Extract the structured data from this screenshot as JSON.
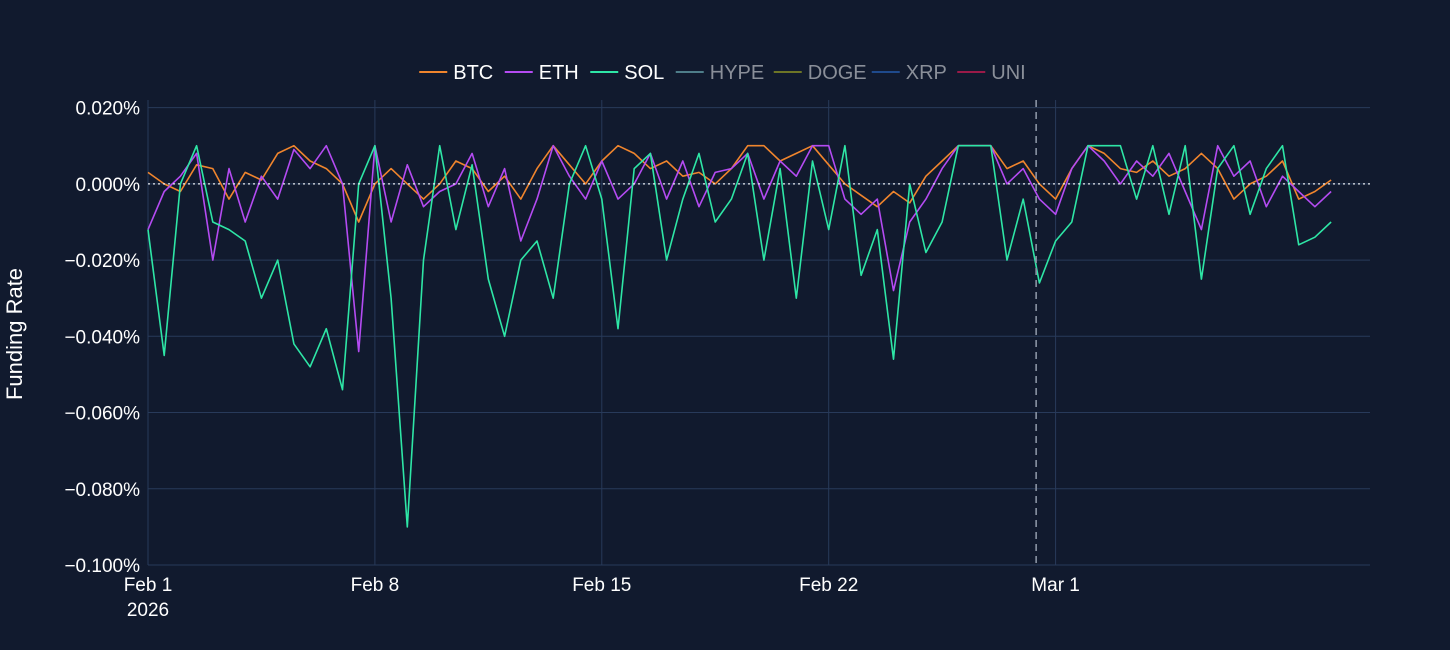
{
  "colors": {
    "background": "#111a2e",
    "grid": "#283a5a",
    "zero_line": "#e8ecf2",
    "marker_line": "#8a93a3",
    "legend_active_text": "#ffffff",
    "legend_inactive_text": "#8a8f99"
  },
  "chart_data": {
    "type": "line",
    "title": "",
    "xlabel": "",
    "ylabel": "Funding Rate",
    "ylim": [
      -0.1,
      0.022
    ],
    "y_unit": "%",
    "y_ticks": [
      0.02,
      0.0,
      -0.02,
      -0.04,
      -0.06,
      -0.08,
      -0.1
    ],
    "y_tick_labels": [
      "0.020%",
      "0.000%",
      "−0.020%",
      "−0.040%",
      "−0.060%",
      "−0.080%",
      "−0.100%"
    ],
    "x_range_days": [
      0,
      37.7
    ],
    "x_ticks": [
      0,
      7,
      14,
      21,
      28
    ],
    "x_tick_labels": [
      "Feb 1",
      "Feb 8",
      "Feb 15",
      "Feb 22",
      "Mar 1"
    ],
    "x_tick_year": "2026",
    "marker_day": 27.4,
    "zero_reference": 0.0,
    "grid": true,
    "legend_placement": "top-center",
    "x_units": "days since Feb 1 2026",
    "series": [
      {
        "name": "BTC",
        "color": "#f0852d",
        "visible": true,
        "points": [
          [
            0,
            0.003
          ],
          [
            0.5,
            0.0
          ],
          [
            1,
            -0.002
          ],
          [
            1.5,
            0.005
          ],
          [
            2,
            0.004
          ],
          [
            2.5,
            -0.004
          ],
          [
            3,
            0.003
          ],
          [
            3.5,
            0.001
          ],
          [
            4,
            0.008
          ],
          [
            4.5,
            0.01
          ],
          [
            5,
            0.006
          ],
          [
            5.5,
            0.004
          ],
          [
            6,
            0.0
          ],
          [
            6.5,
            -0.01
          ],
          [
            7,
            0.0
          ],
          [
            7.5,
            0.004
          ],
          [
            8,
            0.0
          ],
          [
            8.5,
            -0.004
          ],
          [
            9,
            0.0
          ],
          [
            9.5,
            0.006
          ],
          [
            10,
            0.004
          ],
          [
            10.5,
            -0.002
          ],
          [
            11,
            0.002
          ],
          [
            11.5,
            -0.004
          ],
          [
            12,
            0.004
          ],
          [
            12.5,
            0.01
          ],
          [
            13,
            0.005
          ],
          [
            13.5,
            0.0
          ],
          [
            14,
            0.006
          ],
          [
            14.5,
            0.01
          ],
          [
            15,
            0.008
          ],
          [
            15.5,
            0.004
          ],
          [
            16,
            0.006
          ],
          [
            16.5,
            0.002
          ],
          [
            17,
            0.003
          ],
          [
            17.5,
            0.0
          ],
          [
            18,
            0.004
          ],
          [
            18.5,
            0.01
          ],
          [
            19,
            0.01
          ],
          [
            19.5,
            0.006
          ],
          [
            20,
            0.008
          ],
          [
            20.5,
            0.01
          ],
          [
            21,
            0.005
          ],
          [
            21.5,
            0.0
          ],
          [
            22,
            -0.003
          ],
          [
            22.5,
            -0.006
          ],
          [
            23,
            -0.002
          ],
          [
            23.5,
            -0.005
          ],
          [
            24,
            0.002
          ],
          [
            24.5,
            0.006
          ],
          [
            25,
            0.01
          ],
          [
            25.5,
            0.01
          ],
          [
            26,
            0.01
          ],
          [
            26.5,
            0.004
          ],
          [
            27,
            0.006
          ],
          [
            27.5,
            0.0
          ],
          [
            28,
            -0.004
          ],
          [
            28.5,
            0.004
          ],
          [
            29,
            0.01
          ],
          [
            29.5,
            0.008
          ],
          [
            30,
            0.004
          ],
          [
            30.5,
            0.003
          ],
          [
            31,
            0.006
          ],
          [
            31.5,
            0.002
          ],
          [
            32,
            0.004
          ],
          [
            32.5,
            0.008
          ],
          [
            33,
            0.004
          ],
          [
            33.5,
            -0.004
          ],
          [
            34,
            0.0
          ],
          [
            34.5,
            0.002
          ],
          [
            35,
            0.006
          ],
          [
            35.5,
            -0.004
          ],
          [
            36,
            -0.002
          ],
          [
            36.5,
            0.001
          ]
        ]
      },
      {
        "name": "ETH",
        "color": "#b44bf2",
        "visible": true,
        "points": [
          [
            0,
            -0.012
          ],
          [
            0.5,
            -0.002
          ],
          [
            1,
            0.002
          ],
          [
            1.5,
            0.008
          ],
          [
            2,
            -0.02
          ],
          [
            2.5,
            0.004
          ],
          [
            3,
            -0.01
          ],
          [
            3.5,
            0.002
          ],
          [
            4,
            -0.004
          ],
          [
            4.5,
            0.009
          ],
          [
            5,
            0.004
          ],
          [
            5.5,
            0.01
          ],
          [
            6,
            0.0
          ],
          [
            6.5,
            -0.044
          ],
          [
            7,
            0.01
          ],
          [
            7.5,
            -0.01
          ],
          [
            8,
            0.005
          ],
          [
            8.5,
            -0.006
          ],
          [
            9,
            -0.002
          ],
          [
            9.5,
            0.0
          ],
          [
            10,
            0.008
          ],
          [
            10.5,
            -0.006
          ],
          [
            11,
            0.004
          ],
          [
            11.5,
            -0.015
          ],
          [
            12,
            -0.004
          ],
          [
            12.5,
            0.01
          ],
          [
            13,
            0.002
          ],
          [
            13.5,
            -0.004
          ],
          [
            14,
            0.006
          ],
          [
            14.5,
            -0.004
          ],
          [
            15,
            0.0
          ],
          [
            15.5,
            0.008
          ],
          [
            16,
            -0.004
          ],
          [
            16.5,
            0.006
          ],
          [
            17,
            -0.006
          ],
          [
            17.5,
            0.003
          ],
          [
            18,
            0.004
          ],
          [
            18.5,
            0.008
          ],
          [
            19,
            -0.004
          ],
          [
            19.5,
            0.006
          ],
          [
            20,
            0.002
          ],
          [
            20.5,
            0.01
          ],
          [
            21,
            0.01
          ],
          [
            21.5,
            -0.004
          ],
          [
            22,
            -0.008
          ],
          [
            22.5,
            -0.004
          ],
          [
            23,
            -0.028
          ],
          [
            23.5,
            -0.01
          ],
          [
            24,
            -0.004
          ],
          [
            24.5,
            0.004
          ],
          [
            25,
            0.01
          ],
          [
            25.5,
            0.01
          ],
          [
            26,
            0.01
          ],
          [
            26.5,
            0.0
          ],
          [
            27,
            0.004
          ],
          [
            27.5,
            -0.004
          ],
          [
            28,
            -0.008
          ],
          [
            28.5,
            0.004
          ],
          [
            29,
            0.01
          ],
          [
            29.5,
            0.006
          ],
          [
            30,
            0.0
          ],
          [
            30.5,
            0.006
          ],
          [
            31,
            0.002
          ],
          [
            31.5,
            0.008
          ],
          [
            32,
            -0.002
          ],
          [
            32.5,
            -0.012
          ],
          [
            33,
            0.01
          ],
          [
            33.5,
            0.002
          ],
          [
            34,
            0.006
          ],
          [
            34.5,
            -0.006
          ],
          [
            35,
            0.002
          ],
          [
            35.5,
            -0.002
          ],
          [
            36,
            -0.006
          ],
          [
            36.5,
            -0.002
          ]
        ]
      },
      {
        "name": "SOL",
        "color": "#2ee6a6",
        "visible": true,
        "points": [
          [
            0,
            -0.012
          ],
          [
            0.5,
            -0.045
          ],
          [
            1,
            0.0
          ],
          [
            1.5,
            0.01
          ],
          [
            2,
            -0.01
          ],
          [
            2.5,
            -0.012
          ],
          [
            3,
            -0.015
          ],
          [
            3.5,
            -0.03
          ],
          [
            4,
            -0.02
          ],
          [
            4.5,
            -0.042
          ],
          [
            5,
            -0.048
          ],
          [
            5.5,
            -0.038
          ],
          [
            6,
            -0.054
          ],
          [
            6.5,
            0.0
          ],
          [
            7,
            0.01
          ],
          [
            7.5,
            -0.03
          ],
          [
            8,
            -0.09
          ],
          [
            8.5,
            -0.02
          ],
          [
            9,
            0.01
          ],
          [
            9.5,
            -0.012
          ],
          [
            10,
            0.005
          ],
          [
            10.5,
            -0.025
          ],
          [
            11,
            -0.04
          ],
          [
            11.5,
            -0.02
          ],
          [
            12,
            -0.015
          ],
          [
            12.5,
            -0.03
          ],
          [
            13,
            0.0
          ],
          [
            13.5,
            0.01
          ],
          [
            14,
            -0.004
          ],
          [
            14.5,
            -0.038
          ],
          [
            15,
            0.004
          ],
          [
            15.5,
            0.008
          ],
          [
            16,
            -0.02
          ],
          [
            16.5,
            -0.004
          ],
          [
            17,
            0.008
          ],
          [
            17.5,
            -0.01
          ],
          [
            18,
            -0.004
          ],
          [
            18.5,
            0.008
          ],
          [
            19,
            -0.02
          ],
          [
            19.5,
            0.004
          ],
          [
            20,
            -0.03
          ],
          [
            20.5,
            0.006
          ],
          [
            21,
            -0.012
          ],
          [
            21.5,
            0.01
          ],
          [
            22,
            -0.024
          ],
          [
            22.5,
            -0.012
          ],
          [
            23,
            -0.046
          ],
          [
            23.5,
            0.0
          ],
          [
            24,
            -0.018
          ],
          [
            24.5,
            -0.01
          ],
          [
            25,
            0.01
          ],
          [
            25.5,
            0.01
          ],
          [
            26,
            0.01
          ],
          [
            26.5,
            -0.02
          ],
          [
            27,
            -0.004
          ],
          [
            27.5,
            -0.026
          ],
          [
            28,
            -0.015
          ],
          [
            28.5,
            -0.01
          ],
          [
            29,
            0.01
          ],
          [
            29.5,
            0.01
          ],
          [
            30,
            0.01
          ],
          [
            30.5,
            -0.004
          ],
          [
            31,
            0.01
          ],
          [
            31.5,
            -0.008
          ],
          [
            32,
            0.01
          ],
          [
            32.5,
            -0.025
          ],
          [
            33,
            0.004
          ],
          [
            33.5,
            0.01
          ],
          [
            34,
            -0.008
          ],
          [
            34.5,
            0.004
          ],
          [
            35,
            0.01
          ],
          [
            35.5,
            -0.016
          ],
          [
            36,
            -0.014
          ],
          [
            36.5,
            -0.01
          ]
        ]
      },
      {
        "name": "HYPE",
        "color": "#4e7d89",
        "visible": false,
        "points": []
      },
      {
        "name": "DOGE",
        "color": "#6d7526",
        "visible": false,
        "points": []
      },
      {
        "name": "XRP",
        "color": "#1f4a8c",
        "visible": false,
        "points": []
      },
      {
        "name": "UNI",
        "color": "#9a1a48",
        "visible": false,
        "points": []
      }
    ]
  }
}
